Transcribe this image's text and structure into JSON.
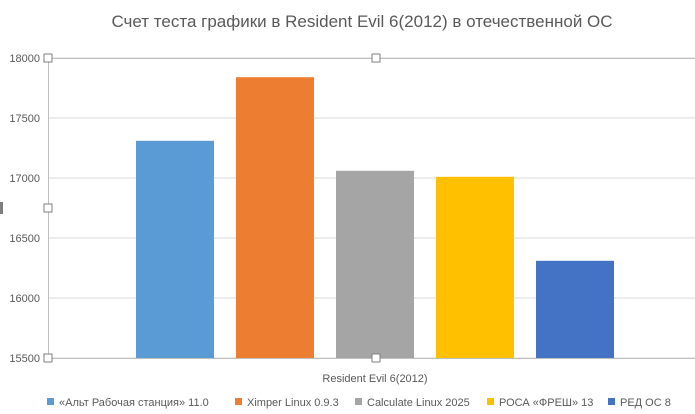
{
  "chart_data": {
    "type": "bar",
    "title": "Счет теста графики в Resident Evil 6(2012) в отечественной ОС",
    "xlabel": "Resident Evil 6(2012)",
    "ylabel": "",
    "categories": [
      "Resident Evil 6(2012)"
    ],
    "ylim": [
      15500,
      18000
    ],
    "yticks": [
      15500,
      16000,
      16500,
      17000,
      17500,
      18000
    ],
    "grid": true,
    "legend_position": "bottom",
    "series": [
      {
        "name": "«Альт Рабочая станция» 11.0",
        "values": [
          17310
        ],
        "color": "#5b9bd5"
      },
      {
        "name": "Ximper Linux 0.9.3",
        "values": [
          17840
        ],
        "color": "#ed7d31"
      },
      {
        "name": "Calculate Linux 2025",
        "values": [
          17060
        ],
        "color": "#a5a5a5"
      },
      {
        "name": "РОСА «ФРЕШ» 13",
        "values": [
          17010
        ],
        "color": "#ffc000"
      },
      {
        "name": "РЕД ОС 8",
        "values": [
          16310
        ],
        "color": "#4472c4"
      }
    ]
  }
}
